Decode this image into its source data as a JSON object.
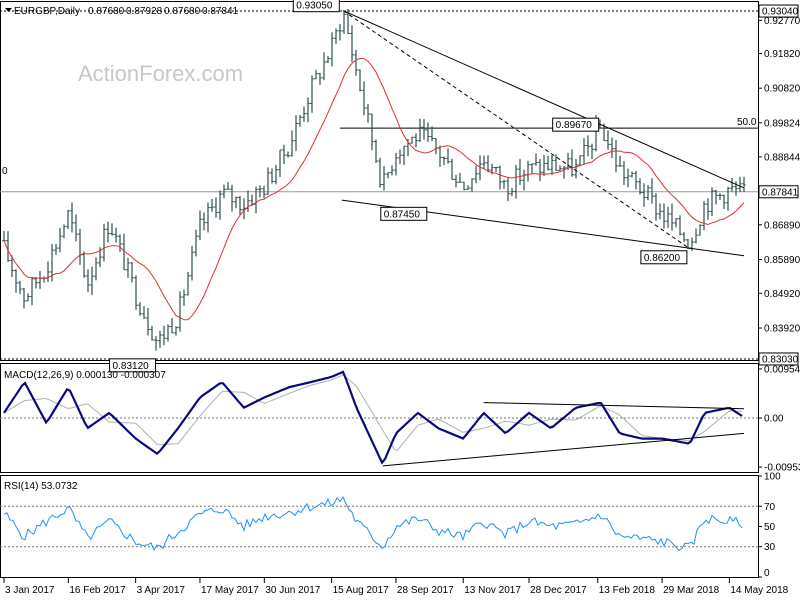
{
  "chart_data": [
    {
      "type": "ohlc",
      "name": "price",
      "symbol": "EURGBP",
      "timeframe": "Daily",
      "ohlc_readout": [
        "0.87680",
        "0.87928",
        "0.87680",
        "0.87841"
      ],
      "watermark": "ActionForex.com",
      "ylim": [
        0.83,
        0.933
      ],
      "y_ticks": [
        "0.92770",
        "0.91820",
        "0.90820",
        "0.89824",
        "0.88844",
        "0.86890",
        "0.85890",
        "0.84920",
        "0.83920"
      ],
      "last_price": "0.87841",
      "top_level": "0.93040",
      "bottom_level": "0.83030",
      "fib_label": "50.0",
      "left_edge_label": "0",
      "annotations": [
        {
          "label": "0.93050",
          "date": "2017-08-23",
          "value": 0.9305
        },
        {
          "label": "0.89670",
          "date": "2018-02-15",
          "value": 0.8967
        },
        {
          "label": "0.87450",
          "date": "2017-09-19",
          "value": 0.8745
        },
        {
          "label": "0.86200",
          "date": "2018-04-17",
          "value": 0.862
        },
        {
          "label": "0.83120",
          "date": "2017-04-18",
          "value": 0.8312
        }
      ],
      "horizontal_levels": [
        0.9304,
        0.8967,
        0.8784,
        0.8303
      ],
      "trendlines": [
        {
          "style": "solid",
          "from": [
            "2017-08-23",
            0.9305
          ],
          "to": [
            "2018-05-24",
            0.8795
          ]
        },
        {
          "style": "solid",
          "from": [
            "2017-08-22",
            0.876
          ],
          "to": [
            "2018-05-24",
            0.86
          ]
        },
        {
          "style": "dashed",
          "from": [
            "2017-08-23",
            0.9305
          ],
          "to": [
            "2018-04-17",
            0.862
          ]
        }
      ],
      "moving_average_color": "#e03030",
      "bar_color": "#2f4f4f",
      "series": [
        {
          "name": "close",
          "x": [
            "2017-01-03",
            "2017-01-17",
            "2017-02-01",
            "2017-02-16",
            "2017-03-01",
            "2017-03-16",
            "2017-04-03",
            "2017-04-18",
            "2017-05-02",
            "2017-05-17",
            "2017-06-01",
            "2017-06-16",
            "2017-06-30",
            "2017-07-17",
            "2017-08-01",
            "2017-08-15",
            "2017-08-23",
            "2017-09-01",
            "2017-09-19",
            "2017-09-28",
            "2017-10-13",
            "2017-10-27",
            "2017-11-13",
            "2017-11-27",
            "2017-12-12",
            "2017-12-28",
            "2018-01-12",
            "2018-01-29",
            "2018-02-15",
            "2018-02-28",
            "2018-03-15",
            "2018-03-29",
            "2018-04-17",
            "2018-04-27",
            "2018-05-14",
            "2018-05-24"
          ],
          "y": [
            0.862,
            0.848,
            0.857,
            0.872,
            0.852,
            0.87,
            0.849,
            0.835,
            0.843,
            0.868,
            0.878,
            0.875,
            0.88,
            0.892,
            0.908,
            0.92,
            0.93,
            0.913,
            0.88,
            0.89,
            0.895,
            0.89,
            0.88,
            0.888,
            0.88,
            0.885,
            0.886,
            0.885,
            0.897,
            0.885,
            0.879,
            0.872,
            0.864,
            0.875,
            0.879,
            0.8784
          ]
        }
      ]
    },
    {
      "type": "line",
      "name": "macd",
      "label": "MACD(12,26,9) 0.000130 -0.000307",
      "ylim": [
        -0.0105,
        0.0105
      ],
      "y_ticks": [
        "0.00954",
        "0.00",
        "-0.009538"
      ],
      "line_color": "#0a0a7a",
      "signal_color": "#b0b0b0",
      "x": [
        "2017-01-03",
        "2017-01-17",
        "2017-02-01",
        "2017-02-16",
        "2017-03-01",
        "2017-03-16",
        "2017-04-03",
        "2017-04-18",
        "2017-05-02",
        "2017-05-17",
        "2017-06-01",
        "2017-06-16",
        "2017-06-30",
        "2017-07-17",
        "2017-08-01",
        "2017-08-15",
        "2017-08-23",
        "2017-09-01",
        "2017-09-19",
        "2017-09-28",
        "2017-10-13",
        "2017-10-27",
        "2017-11-13",
        "2017-11-27",
        "2017-12-12",
        "2017-12-28",
        "2018-01-12",
        "2018-01-29",
        "2018-02-15",
        "2018-02-28",
        "2018-03-15",
        "2018-03-29",
        "2018-04-17",
        "2018-04-27",
        "2018-05-14",
        "2018-05-24"
      ],
      "y": [
        0.001,
        0.007,
        -0.001,
        0.006,
        -0.002,
        0.001,
        -0.004,
        -0.007,
        -0.002,
        0.004,
        0.007,
        0.002,
        0.004,
        0.006,
        0.007,
        0.008,
        0.009,
        0.002,
        -0.009,
        -0.003,
        0.001,
        -0.002,
        -0.004,
        0.001,
        -0.003,
        0.001,
        -0.002,
        0.002,
        0.003,
        -0.003,
        -0.004,
        -0.004,
        -0.005,
        0.001,
        0.002,
        0.00013
      ],
      "trendlines": [
        {
          "from": [
            "2017-11-27",
            0.003
          ],
          "to": [
            "2018-05-24",
            0.0018
          ]
        },
        {
          "from": [
            "2017-09-19",
            -0.0093
          ],
          "to": [
            "2018-05-24",
            -0.003
          ]
        }
      ]
    },
    {
      "type": "line",
      "name": "rsi",
      "label": "RSI(14) 53.0732",
      "ylim": [
        0,
        100
      ],
      "y_ticks": [
        "100",
        "70",
        "50",
        "30",
        "0"
      ],
      "line_color": "#1e90ff",
      "x": [
        "2017-01-03",
        "2017-01-17",
        "2017-02-01",
        "2017-02-16",
        "2017-03-01",
        "2017-03-16",
        "2017-04-03",
        "2017-04-18",
        "2017-05-02",
        "2017-05-17",
        "2017-06-01",
        "2017-06-16",
        "2017-06-30",
        "2017-07-17",
        "2017-08-01",
        "2017-08-15",
        "2017-08-23",
        "2017-09-01",
        "2017-09-19",
        "2017-09-28",
        "2017-10-13",
        "2017-10-27",
        "2017-11-13",
        "2017-11-27",
        "2017-12-12",
        "2017-12-28",
        "2018-01-12",
        "2018-01-29",
        "2018-02-15",
        "2018-02-28",
        "2018-03-15",
        "2018-03-29",
        "2018-04-17",
        "2018-04-27",
        "2018-05-14",
        "2018-05-24"
      ],
      "y": [
        63,
        40,
        55,
        68,
        38,
        55,
        35,
        28,
        45,
        62,
        68,
        50,
        60,
        64,
        70,
        73,
        78,
        55,
        30,
        50,
        58,
        46,
        40,
        55,
        42,
        55,
        50,
        52,
        62,
        40,
        38,
        35,
        28,
        58,
        55,
        53.07
      ]
    }
  ],
  "x_axis": {
    "labels": [
      "3 Jan 2017",
      "16 Feb 2017",
      "3 Apr 2017",
      "17 May 2017",
      "30 Jun 2017",
      "15 Aug 2017",
      "28 Sep 2017",
      "13 Nov 2017",
      "28 Dec 2017",
      "13 Feb 2018",
      "29 Mar 2018",
      "14 May 2018"
    ],
    "dates": [
      "2017-01-03",
      "2017-02-16",
      "2017-04-03",
      "2017-05-17",
      "2017-06-30",
      "2017-08-15",
      "2017-09-28",
      "2017-11-13",
      "2017-12-28",
      "2018-02-13",
      "2018-03-29",
      "2018-05-14"
    ]
  }
}
